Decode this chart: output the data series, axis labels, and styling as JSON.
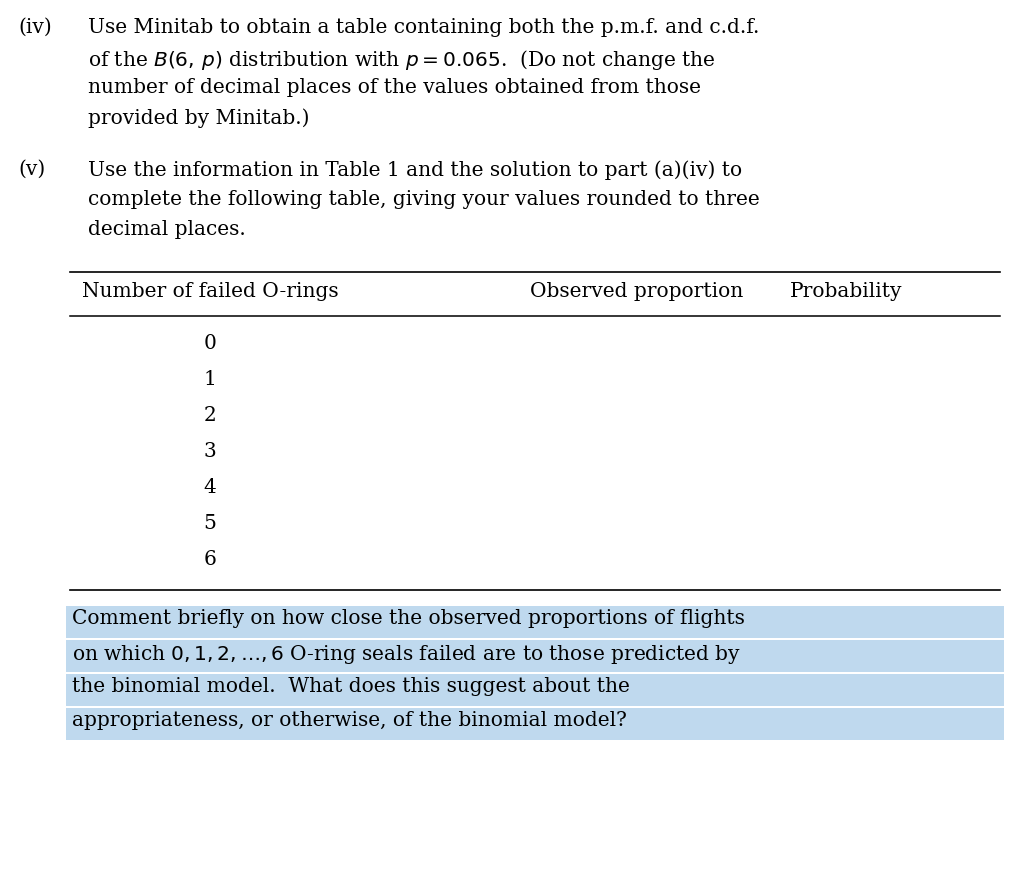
{
  "background_color": "#ffffff",
  "fig_width": 10.22,
  "fig_height": 8.92,
  "dpi": 100,
  "text_color": "#000000",
  "highlight_color": "#bfd9ee",
  "font_family": "serif",
  "paragraph_iv_label": "(iv)",
  "paragraph_iv_line1": "Use Minitab to obtain a table containing both the p.m.f. and c.d.f.",
  "paragraph_iv_line2": "of the $B(6,\\,p)$ distribution with $p = 0.065$.  (Do not change the",
  "paragraph_iv_line3": "number of decimal places of the values obtained from those",
  "paragraph_iv_line4": "provided by Minitab.)",
  "paragraph_v_label": "(v)",
  "paragraph_v_line1": "Use the information in Table 1 and the solution to part (a)(iv) to",
  "paragraph_v_line2": "complete the following table, giving your values rounded to three",
  "paragraph_v_line3": "decimal places.",
  "table_col0": "Number of failed O-rings",
  "table_col1": "Observed proportion",
  "table_col2": "Probability",
  "table_rows": [
    "0",
    "1",
    "2",
    "3",
    "4",
    "5",
    "6"
  ],
  "comment_line1": "Comment briefly on how close the observed proportions of flights",
  "comment_line2": "on which $0, 1, 2, \\ldots, 6$ O-ring seals failed are to those predicted by",
  "comment_line3": "the binomial model.  What does this suggest about the",
  "comment_line4": "appropriateness, or otherwise, of the binomial model?"
}
